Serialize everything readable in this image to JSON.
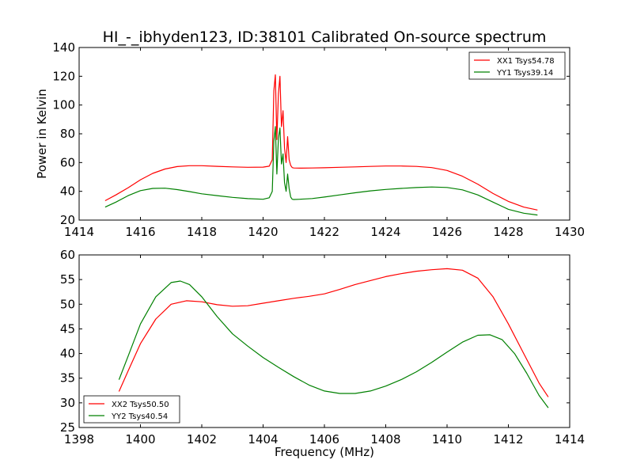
{
  "figure": {
    "title": "HI_-_ibhyden123, ID:38101 Calibrated On-source spectrum"
  },
  "chart_data": [
    {
      "type": "line",
      "title": "HI_-_ibhyden123, ID:38101 Calibrated On-source spectrum",
      "xlabel": "",
      "ylabel": "Power in Kelvin",
      "xlim": [
        1414,
        1430
      ],
      "ylim": [
        20,
        140
      ],
      "xticks": [
        1414,
        1416,
        1418,
        1420,
        1422,
        1424,
        1426,
        1428,
        1430
      ],
      "yticks": [
        20,
        40,
        60,
        80,
        100,
        120,
        140
      ],
      "grid": false,
      "legend_position": "top-right",
      "series": [
        {
          "name": "XX1 Tsys54.78",
          "color": "#ff0000",
          "x": [
            1414.85,
            1415.2,
            1415.6,
            1416.0,
            1416.4,
            1416.8,
            1417.2,
            1417.6,
            1418.0,
            1418.5,
            1419.0,
            1419.5,
            1420.0,
            1420.2,
            1420.3,
            1420.35,
            1420.4,
            1420.45,
            1420.5,
            1420.55,
            1420.6,
            1420.65,
            1420.7,
            1420.75,
            1420.8,
            1420.85,
            1420.9,
            1420.95,
            1421.0,
            1421.2,
            1421.6,
            1422.0,
            1422.5,
            1423.0,
            1423.5,
            1424.0,
            1424.5,
            1425.0,
            1425.5,
            1426.0,
            1426.5,
            1427.0,
            1427.5,
            1428.0,
            1428.5,
            1428.95
          ],
          "values": [
            33.5,
            37.5,
            42.5,
            48.0,
            52.5,
            55.5,
            57.2,
            57.8,
            57.8,
            57.4,
            57.0,
            56.7,
            56.8,
            57.5,
            62.0,
            110.0,
            121.0,
            76.0,
            108.0,
            120.0,
            85.0,
            96.0,
            70.0,
            60.0,
            78.0,
            62.0,
            58.0,
            56.5,
            56.2,
            56.1,
            56.2,
            56.4,
            56.7,
            57.0,
            57.3,
            57.6,
            57.6,
            57.3,
            56.5,
            54.5,
            50.5,
            45.0,
            38.5,
            33.0,
            29.0,
            27.0
          ]
        },
        {
          "name": "YY1 Tsys39.14",
          "color": "#008000",
          "x": [
            1414.85,
            1415.2,
            1415.6,
            1416.0,
            1416.4,
            1416.8,
            1417.2,
            1417.6,
            1418.0,
            1418.5,
            1419.0,
            1419.5,
            1420.0,
            1420.2,
            1420.3,
            1420.35,
            1420.4,
            1420.45,
            1420.5,
            1420.55,
            1420.6,
            1420.65,
            1420.7,
            1420.75,
            1420.8,
            1420.85,
            1420.9,
            1420.95,
            1421.0,
            1421.2,
            1421.6,
            1422.0,
            1422.5,
            1423.0,
            1423.5,
            1424.0,
            1424.5,
            1425.0,
            1425.5,
            1426.0,
            1426.5,
            1427.0,
            1427.5,
            1428.0,
            1428.5,
            1428.95
          ],
          "values": [
            29.0,
            32.5,
            37.0,
            40.5,
            42.0,
            42.2,
            41.2,
            39.8,
            38.3,
            37.0,
            35.8,
            34.9,
            34.5,
            35.5,
            40.0,
            75.0,
            85.0,
            52.0,
            77.0,
            84.0,
            59.0,
            66.0,
            46.0,
            40.0,
            52.0,
            42.0,
            36.0,
            34.5,
            34.3,
            34.5,
            35.0,
            36.0,
            37.5,
            39.0,
            40.3,
            41.3,
            42.0,
            42.6,
            43.0,
            42.7,
            41.0,
            37.5,
            32.5,
            27.5,
            24.8,
            23.5
          ]
        }
      ]
    },
    {
      "type": "line",
      "title": "",
      "xlabel": "Frequency (MHz)",
      "ylabel": "",
      "xlim": [
        1398,
        1414
      ],
      "ylim": [
        25,
        60
      ],
      "xticks": [
        1398,
        1400,
        1402,
        1404,
        1406,
        1408,
        1410,
        1412,
        1414
      ],
      "yticks": [
        25,
        30,
        35,
        40,
        45,
        50,
        55,
        60
      ],
      "grid": false,
      "legend_position": "bottom-left",
      "series": [
        {
          "name": "XX2 Tsys50.50",
          "color": "#ff0000",
          "x": [
            1399.3,
            1399.6,
            1400.0,
            1400.5,
            1401.0,
            1401.5,
            1402.0,
            1402.5,
            1403.0,
            1403.5,
            1404.0,
            1404.5,
            1405.0,
            1405.5,
            1406.0,
            1406.5,
            1407.0,
            1407.5,
            1408.0,
            1408.5,
            1409.0,
            1409.5,
            1410.0,
            1410.5,
            1411.0,
            1411.5,
            1412.0,
            1412.5,
            1413.0,
            1413.3
          ],
          "values": [
            32.3,
            36.5,
            42.0,
            47.0,
            50.0,
            50.7,
            50.5,
            49.9,
            49.6,
            49.7,
            50.2,
            50.7,
            51.2,
            51.6,
            52.1,
            53.0,
            54.0,
            54.8,
            55.6,
            56.2,
            56.7,
            57.0,
            57.2,
            56.9,
            55.3,
            51.5,
            46.0,
            40.0,
            34.0,
            31.2
          ]
        },
        {
          "name": "YY2 Tsys40.54",
          "color": "#008000",
          "x": [
            1399.3,
            1399.6,
            1400.0,
            1400.5,
            1401.0,
            1401.3,
            1401.6,
            1402.0,
            1402.5,
            1403.0,
            1403.5,
            1404.0,
            1404.5,
            1405.0,
            1405.5,
            1406.0,
            1406.5,
            1407.0,
            1407.5,
            1408.0,
            1408.5,
            1409.0,
            1409.5,
            1410.0,
            1410.5,
            1411.0,
            1411.4,
            1411.8,
            1412.2,
            1412.6,
            1413.0,
            1413.3
          ],
          "values": [
            34.7,
            39.5,
            46.0,
            51.5,
            54.4,
            54.7,
            54.0,
            51.5,
            47.5,
            44.0,
            41.5,
            39.2,
            37.2,
            35.3,
            33.6,
            32.4,
            31.9,
            31.9,
            32.4,
            33.4,
            34.7,
            36.3,
            38.2,
            40.3,
            42.3,
            43.7,
            43.8,
            42.8,
            40.0,
            36.0,
            31.5,
            29.0
          ]
        }
      ]
    }
  ]
}
